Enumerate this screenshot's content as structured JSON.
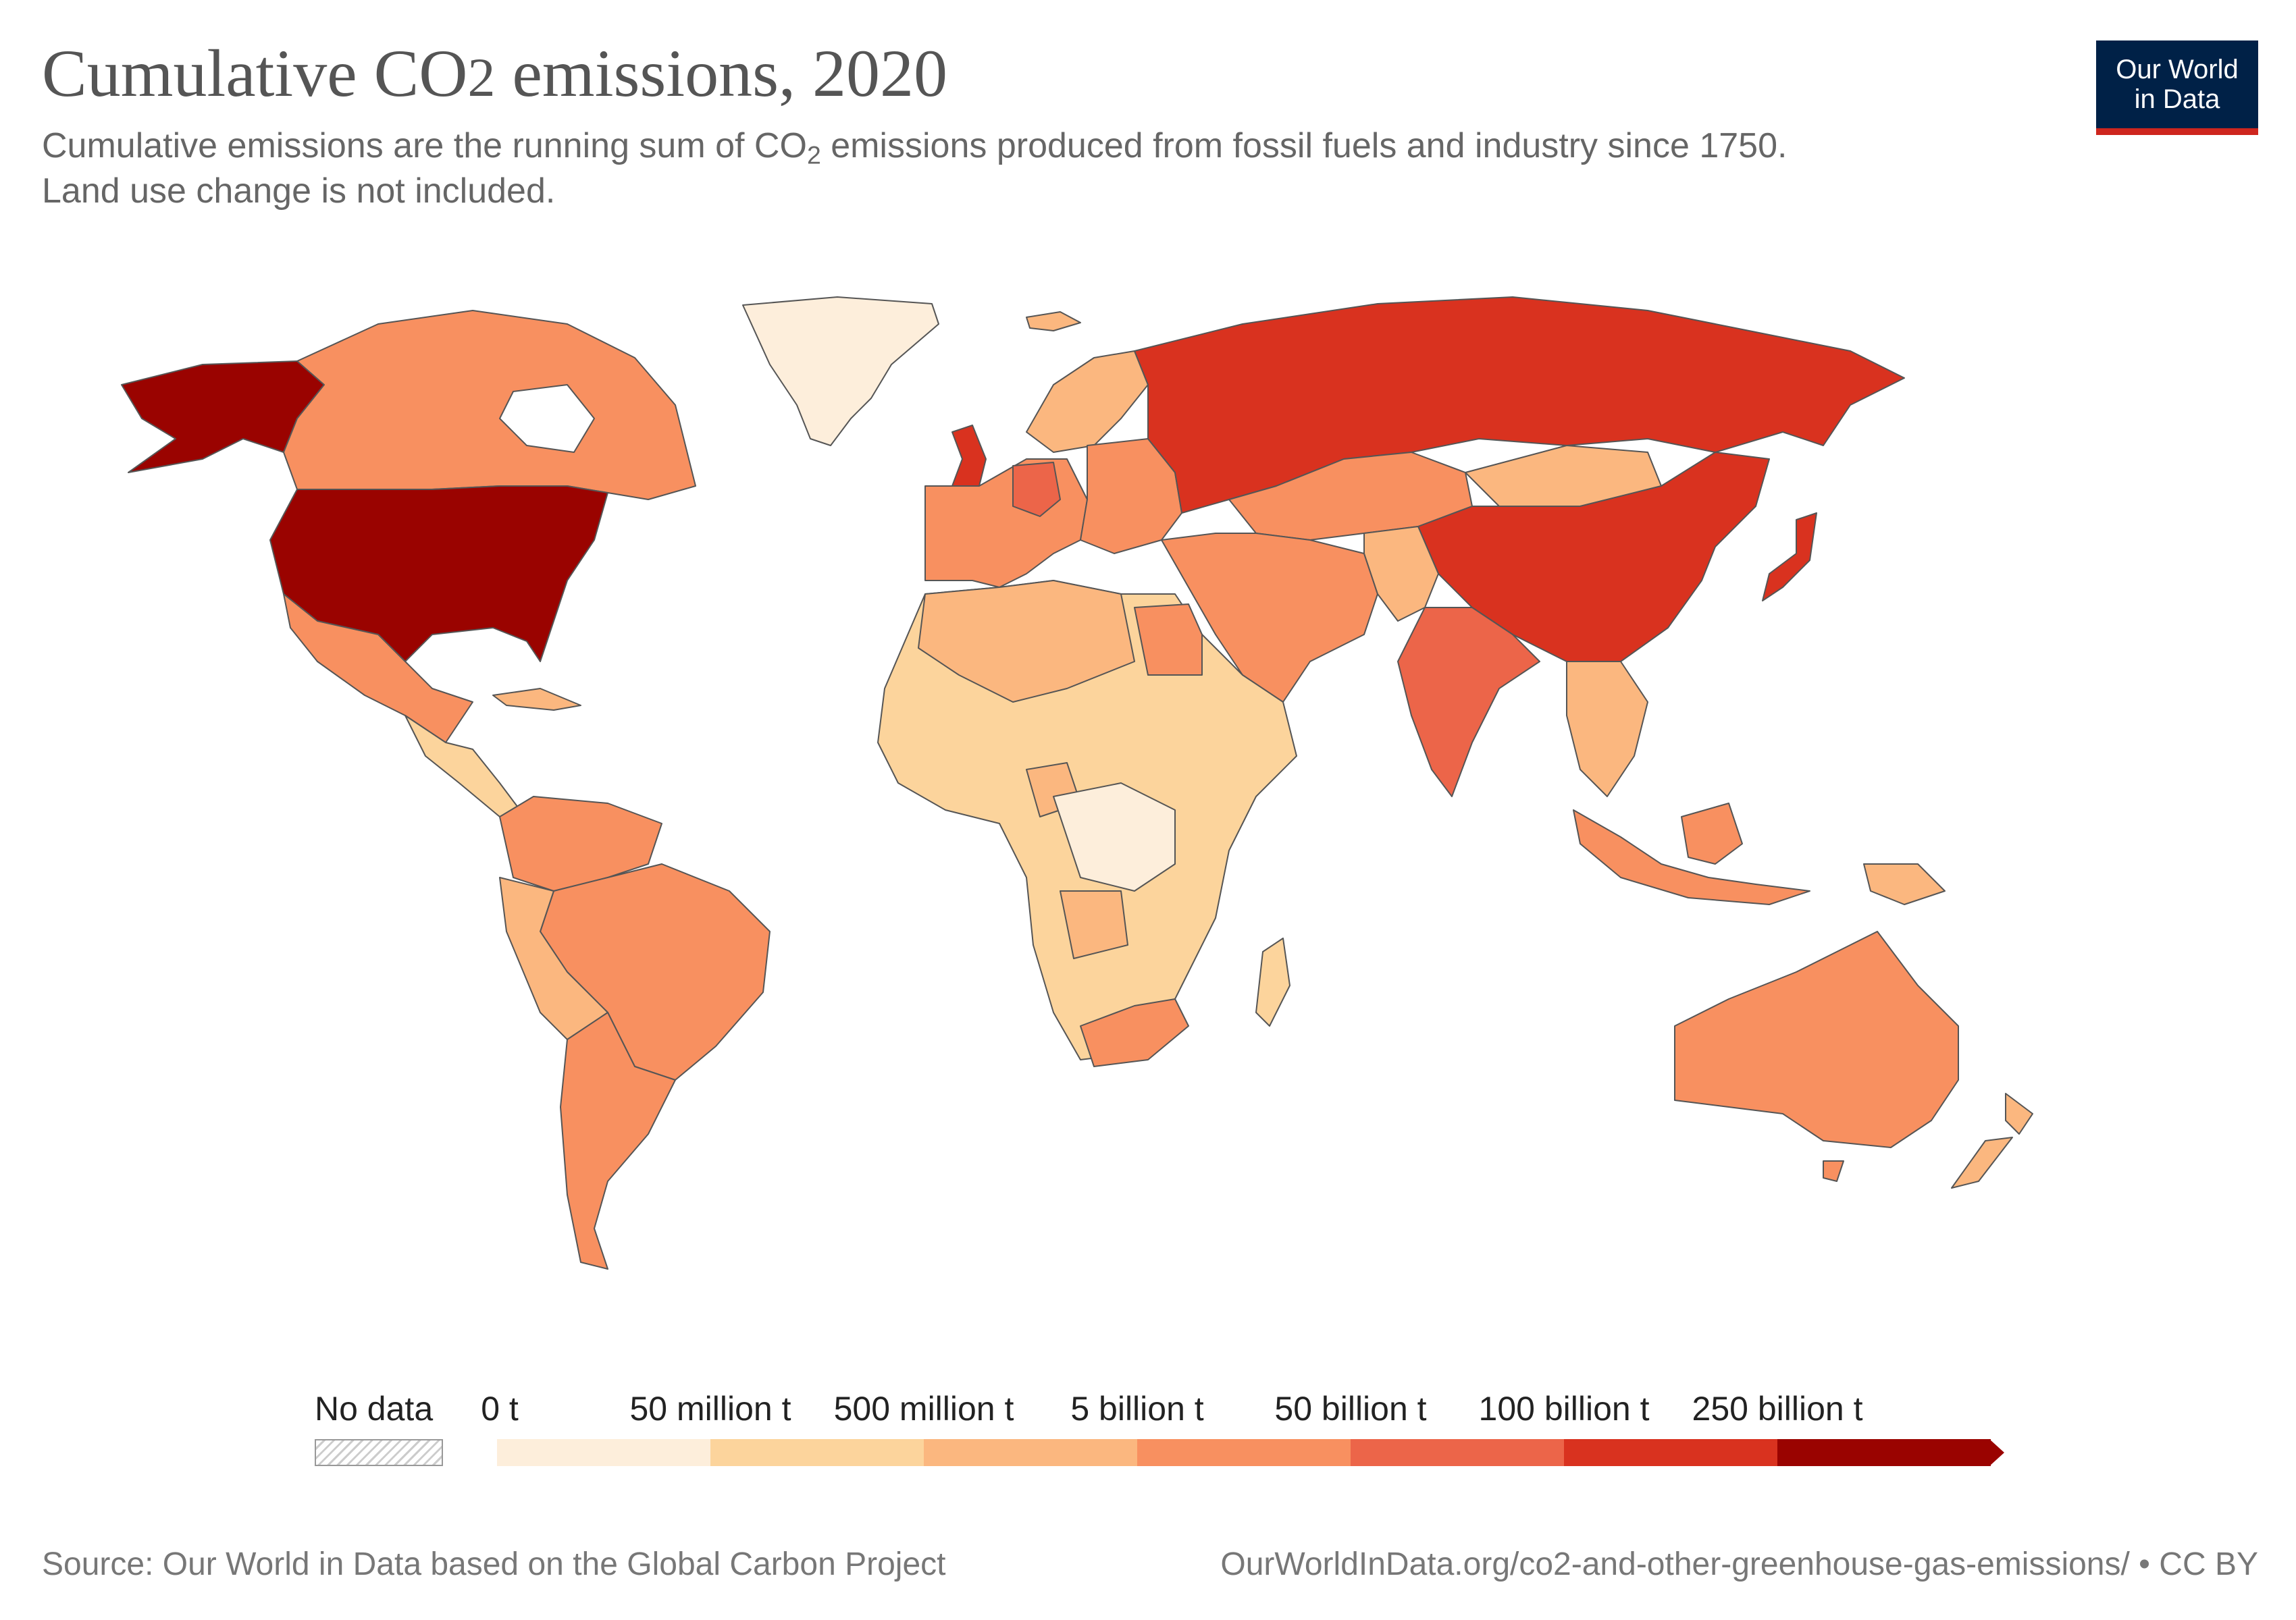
{
  "header": {
    "title_main": "Cumulative CO",
    "title_sub": "2",
    "title_tail": " emissions, 2020",
    "subtitle_line1_a": "Cumulative emissions are the running sum of CO",
    "subtitle_line1_sub": "2",
    "subtitle_line1_b": " emissions produced from fossil fuels and industry since 1750.",
    "subtitle_line2": "Land use change is not included."
  },
  "logo": {
    "line1": "Our World",
    "line2": "in Data",
    "bg_color": "#002147",
    "accent_color": "#ce261e"
  },
  "legend": {
    "no_data_label": "No data",
    "labels": [
      "0 t",
      "50 million t",
      "500 million t",
      "5 billion t",
      "50 billion t",
      "100 billion t",
      "250 billion t"
    ],
    "colors": [
      "#fdeedb",
      "#fcd49c",
      "#fbb77f",
      "#f89060",
      "#ec6549",
      "#d9321f",
      "#9a0300"
    ]
  },
  "chart_data": {
    "type": "choropleth",
    "metric": "Cumulative CO2 emissions, 2020",
    "bins": [
      {
        "label": "0 t",
        "color": "#fdeedb"
      },
      {
        "label": "50 million t",
        "color": "#fcd49c"
      },
      {
        "label": "500 million t",
        "color": "#fbb77f"
      },
      {
        "label": "5 billion t",
        "color": "#f89060"
      },
      {
        "label": "50 billion t",
        "color": "#ec6549"
      },
      {
        "label": "100 billion t",
        "color": "#d9321f"
      },
      {
        "label": "250 billion t",
        "color": "#9a0300"
      }
    ]
  },
  "footer": {
    "source": "Source: Our World in Data based on the Global Carbon Project",
    "url": "OurWorldInData.org/co2-and-other-greenhouse-gas-emissions/ • CC BY"
  }
}
